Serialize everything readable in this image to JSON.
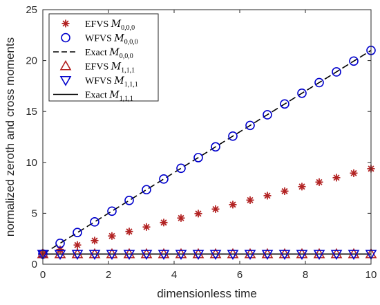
{
  "chart_data": {
    "type": "scatter",
    "xlabel": "dimensionless time",
    "ylabel": "normalized zeroth and cross moments",
    "xlim": [
      0,
      10
    ],
    "ylim": [
      0,
      25
    ],
    "xticks": [
      "0",
      "2",
      "4",
      "6",
      "8",
      "10"
    ],
    "yticks": [
      "0",
      "5",
      "10",
      "15",
      "20",
      "25"
    ],
    "grid": false,
    "legend_position": "top-left",
    "x": [
      0,
      0.5263,
      1.0526,
      1.5789,
      2.1053,
      2.6316,
      3.1579,
      3.6842,
      4.2105,
      4.7368,
      5.2632,
      5.7895,
      6.3158,
      6.8421,
      7.3684,
      7.8947,
      8.4211,
      8.9474,
      9.4737,
      10.0
    ],
    "series": [
      {
        "name": "EFVS",
        "moment": "0,0,0",
        "marker": "asterisk",
        "color": "#b22222",
        "values": [
          1.0,
          1.44,
          1.88,
          2.32,
          2.77,
          3.21,
          3.65,
          4.09,
          4.53,
          4.97,
          5.41,
          5.85,
          6.29,
          6.73,
          7.17,
          7.62,
          8.06,
          8.5,
          8.94,
          9.38
        ]
      },
      {
        "name": "WFVS",
        "moment": "0,0,0",
        "marker": "circle",
        "color": "#0000cc",
        "values": [
          1.0,
          2.05,
          3.11,
          4.16,
          5.21,
          6.26,
          7.32,
          8.37,
          9.42,
          10.47,
          11.53,
          12.58,
          13.63,
          14.68,
          15.74,
          16.79,
          17.84,
          18.89,
          19.95,
          21.0
        ]
      },
      {
        "name": "Exact",
        "moment": "0,0,0",
        "marker": "dashed-line",
        "color": "#000000",
        "values": [
          1.0,
          21.0
        ],
        "x": [
          0,
          10
        ]
      },
      {
        "name": "EFVS",
        "moment": "1,1,1",
        "marker": "triangle-up",
        "color": "#b22222",
        "values": [
          1.0,
          1.0,
          1.0,
          1.0,
          1.0,
          1.0,
          1.0,
          1.0,
          1.0,
          1.0,
          1.0,
          1.0,
          1.0,
          1.0,
          1.0,
          1.0,
          1.0,
          1.0,
          1.0,
          1.0
        ]
      },
      {
        "name": "WFVS",
        "moment": "1,1,1",
        "marker": "triangle-down",
        "color": "#0000cc",
        "values": [
          1.0,
          1.0,
          1.0,
          1.0,
          1.0,
          1.0,
          1.0,
          1.0,
          1.0,
          1.0,
          1.0,
          1.0,
          1.0,
          1.0,
          1.0,
          1.0,
          1.0,
          1.0,
          1.0,
          1.0
        ]
      },
      {
        "name": "Exact",
        "moment": "1,1,1",
        "marker": "solid-line",
        "color": "#000000",
        "values": [
          1.0,
          1.0
        ],
        "x": [
          0,
          10
        ]
      }
    ],
    "legend": [
      {
        "label": "EFVS",
        "symbol": "M",
        "subscript": "0,0,0"
      },
      {
        "label": "WFVS",
        "symbol": "M",
        "subscript": "0,0,0"
      },
      {
        "label": "Exact",
        "symbol": "M",
        "subscript": "0,0,0"
      },
      {
        "label": "EFVS",
        "symbol": "M",
        "subscript": "1,1,1"
      },
      {
        "label": "WFVS",
        "symbol": "M",
        "subscript": "1,1,1"
      },
      {
        "label": "Exact",
        "symbol": "M",
        "subscript": "1,1,1"
      }
    ]
  }
}
